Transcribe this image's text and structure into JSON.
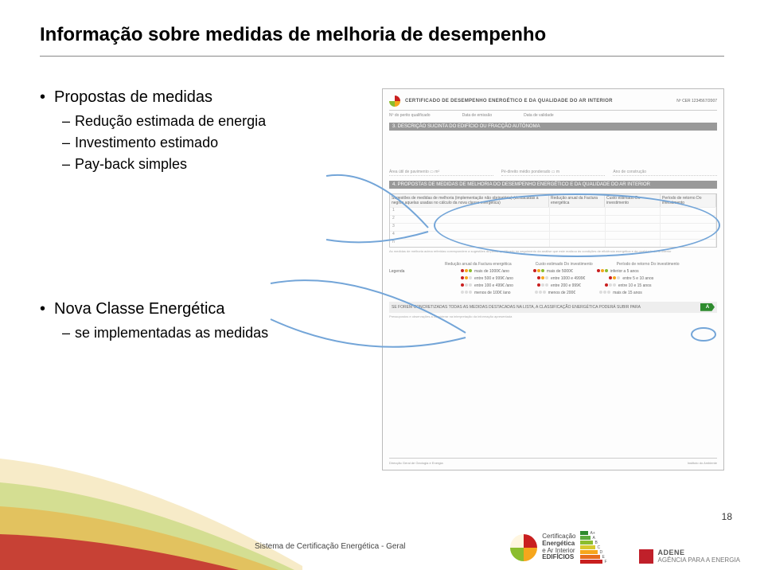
{
  "title": "Informação sobre medidas de melhoria de desempenho",
  "bullets": {
    "b1": "Propostas de medidas",
    "b1a": "Redução estimada de energia",
    "b1b": "Investimento estimado",
    "b1c": "Pay-back simples",
    "b2": "Nova Classe Energética",
    "b2a": "se implementadas as medidas"
  },
  "doc": {
    "cert_title": "CERTIFICADO DE DESEMPENHO ENERGÉTICO E DA QUALIDADE DO AR INTERIOR",
    "cert_num_label": "Nº CER 1234567/2007",
    "sub1": "Nº do perito qualificado",
    "sub2": "Data de emissão",
    "sub3": "Data de validade",
    "band3": "3. DESCRIÇÃO SUCINTA DO EDIFÍCIO OU FRACÇÃO AUTÓNOMA",
    "row1a": "Área útil de pavimento",
    "row1b": "m²",
    "row1c": "Pé-direito médio ponderado",
    "row1d": "m",
    "row1e": "Ano de construção",
    "band4": "4. PROPOSTAS DE MEDIDAS DE MELHORIA DO DESEMPENHO ENERGÉTICO E DA QUALIDADE DO AR INTERIOR",
    "th1": "Sugestões de medidas de melhoria (implementação não obrigatória) (destacadas a negrito aquelas usadas no cálculo da nova classe energética)",
    "th2": "Redução anual da Factura energética",
    "th3": "Custo estimado Do investimento",
    "th4": "Período de retorno Do investimento",
    "rows": [
      "1",
      "2",
      "3",
      "4",
      "n"
    ],
    "note": "As medidas de melhoria acima referidas correspondem a sugestões do perito qualificado no seguimento da análise que este realizou às condições de eficiência energética e da qualidade do ar interior",
    "legend_label": "Legenda",
    "leg_h1": "Redução anual da Factura energética",
    "leg_h2": "Custo estimado Do investimento",
    "leg_h3": "Período de retorno Do investimento",
    "leg": [
      [
        "mais de 1000€ /ano",
        "mais de 5000€",
        "inferior a 5 anos"
      ],
      [
        "entre 500 e 999€ /ano",
        "entre 1000 e 4999€",
        "entre 5 e 10 anos"
      ],
      [
        "entre 100 e 499€ /ano",
        "entre 200 e 999€",
        "entre 10 e 15 anos"
      ],
      [
        "menos de 100€ /ano",
        "menos de 200€",
        "mais de 15 anos"
      ]
    ],
    "footer_line": "SE FOREM CONCRETIZADAS TODAS AS MEDIDAS DESTACADAS NA LISTA, A CLASSIFICAÇÃO ENERGÉTICA PODERÁ SUBIR PARA",
    "footer_sub": "Pressupostos e observações a considerar na interpretação da informação apresentada",
    "bot1": "Direcção Geral de Geologia e Energia",
    "bot2": "Instituto do Ambiente"
  },
  "footer": {
    "text": "Sistema de Certificação Energética - Geral",
    "page": "18",
    "cert": {
      "l1": "Certificação",
      "l2": "Energética",
      "l3": "e Ar Interior",
      "l4": "EDIFÍCIOS"
    },
    "rating_labels": [
      "A+",
      "A",
      "B",
      "C",
      "D",
      "E",
      "F"
    ],
    "rating_colors": [
      "#2e8b2e",
      "#5bab3d",
      "#8bbd2e",
      "#d8c92e",
      "#f6a61c",
      "#e76d1e",
      "#c91f1f"
    ],
    "adene": {
      "name": "ADENE",
      "sub": "AGÊNCIA PARA A ENERGIA"
    }
  },
  "colors": {
    "callout": "#73a5d8",
    "swoosh": [
      "#f4e2b0",
      "#c4d97a",
      "#e8b74a",
      "#c0202a"
    ]
  }
}
